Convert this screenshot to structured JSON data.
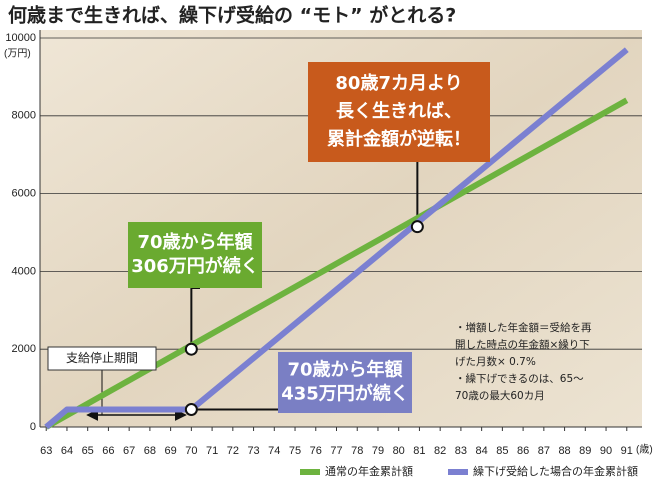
{
  "chart_data": {
    "type": "line",
    "title": "何歳まで生きれば、繰下げ受給の “モト” がとれる?",
    "y_unit": "(万円)",
    "x_unit": "(歳)",
    "xlim": [
      62.7,
      91.3
    ],
    "xticks": [
      63,
      64,
      65,
      66,
      67,
      68,
      69,
      70,
      71,
      72,
      73,
      74,
      75,
      76,
      77,
      78,
      79,
      80,
      81,
      82,
      83,
      84,
      85,
      86,
      87,
      88,
      89,
      90,
      91
    ],
    "ylim": [
      0,
      10000
    ],
    "yticks": [
      0,
      2000,
      4000,
      6000,
      8000,
      10000
    ],
    "grid": true,
    "series": [
      {
        "name": "通常の年金累計額",
        "color": "#6db33f",
        "x": [
          63,
          91
        ],
        "values": [
          0,
          8400
        ]
      },
      {
        "name": "繰下げ受給した場合の年金累計額",
        "color": "#7b80d1",
        "x": [
          63,
          64,
          70,
          91
        ],
        "values": [
          0,
          450,
          450,
          9700
        ]
      }
    ],
    "markers": [
      {
        "x": 70,
        "y": 2000
      },
      {
        "x": 70,
        "y": 450
      },
      {
        "x": 80.9,
        "y": 5150
      }
    ],
    "annotations": [
      {
        "lines": [
          "80歳7カ月より",
          "長く生きれば、",
          "累計金額が逆転！"
        ]
      },
      {
        "lines": [
          "70歳から年額",
          "306万円が続く"
        ]
      },
      {
        "lines": [
          "70歳から年額",
          "435万円が続く"
        ]
      },
      {
        "lines": [
          "支給停止期間"
        ]
      }
    ],
    "notes": [
      "・増額した年金額＝受給を再",
      "開した時点の年金額×繰り下",
      "げた月数× 0.7%",
      "・繰下げできるのは、65～",
      "70歳の最大60カ月"
    ]
  }
}
